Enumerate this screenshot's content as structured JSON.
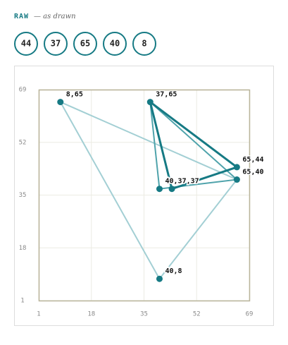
{
  "header": {
    "tag": "RAW",
    "note": "— as drawn",
    "tokens": [
      44,
      37,
      65,
      40,
      8
    ]
  },
  "chart_data": {
    "type": "scatter",
    "x": [
      8,
      37,
      65,
      65,
      40,
      44,
      40
    ],
    "values": [
      65,
      65,
      44,
      40,
      37,
      37,
      8
    ],
    "labels": [
      "8,65",
      "37,65",
      "65,44",
      "65,40",
      "40,37,37",
      null,
      "40,8"
    ],
    "color": "#167a84",
    "edges": [
      {
        "from": 0,
        "to": 3,
        "color": "#a3cfd4"
      },
      {
        "from": 0,
        "to": 6,
        "color": "#a3cfd4"
      },
      {
        "from": 6,
        "to": 3,
        "color": "#a3cfd4"
      },
      {
        "from": 1,
        "to": 4,
        "color": "#4fa3ab"
      },
      {
        "from": 1,
        "to": 3,
        "color": "#4fa3ab"
      },
      {
        "from": 4,
        "to": 3,
        "color": "#4fa3ab"
      },
      {
        "from": 1,
        "to": 5,
        "color": "#167a84"
      },
      {
        "from": 1,
        "to": 2,
        "color": "#167a84"
      },
      {
        "from": 5,
        "to": 2,
        "color": "#167a84"
      }
    ],
    "xlim": [
      1,
      69
    ],
    "ylim": [
      1,
      69
    ],
    "xticks": [
      1,
      18,
      35,
      52,
      69
    ],
    "yticks": [
      1,
      18,
      35,
      52,
      69
    ],
    "grid": true
  }
}
